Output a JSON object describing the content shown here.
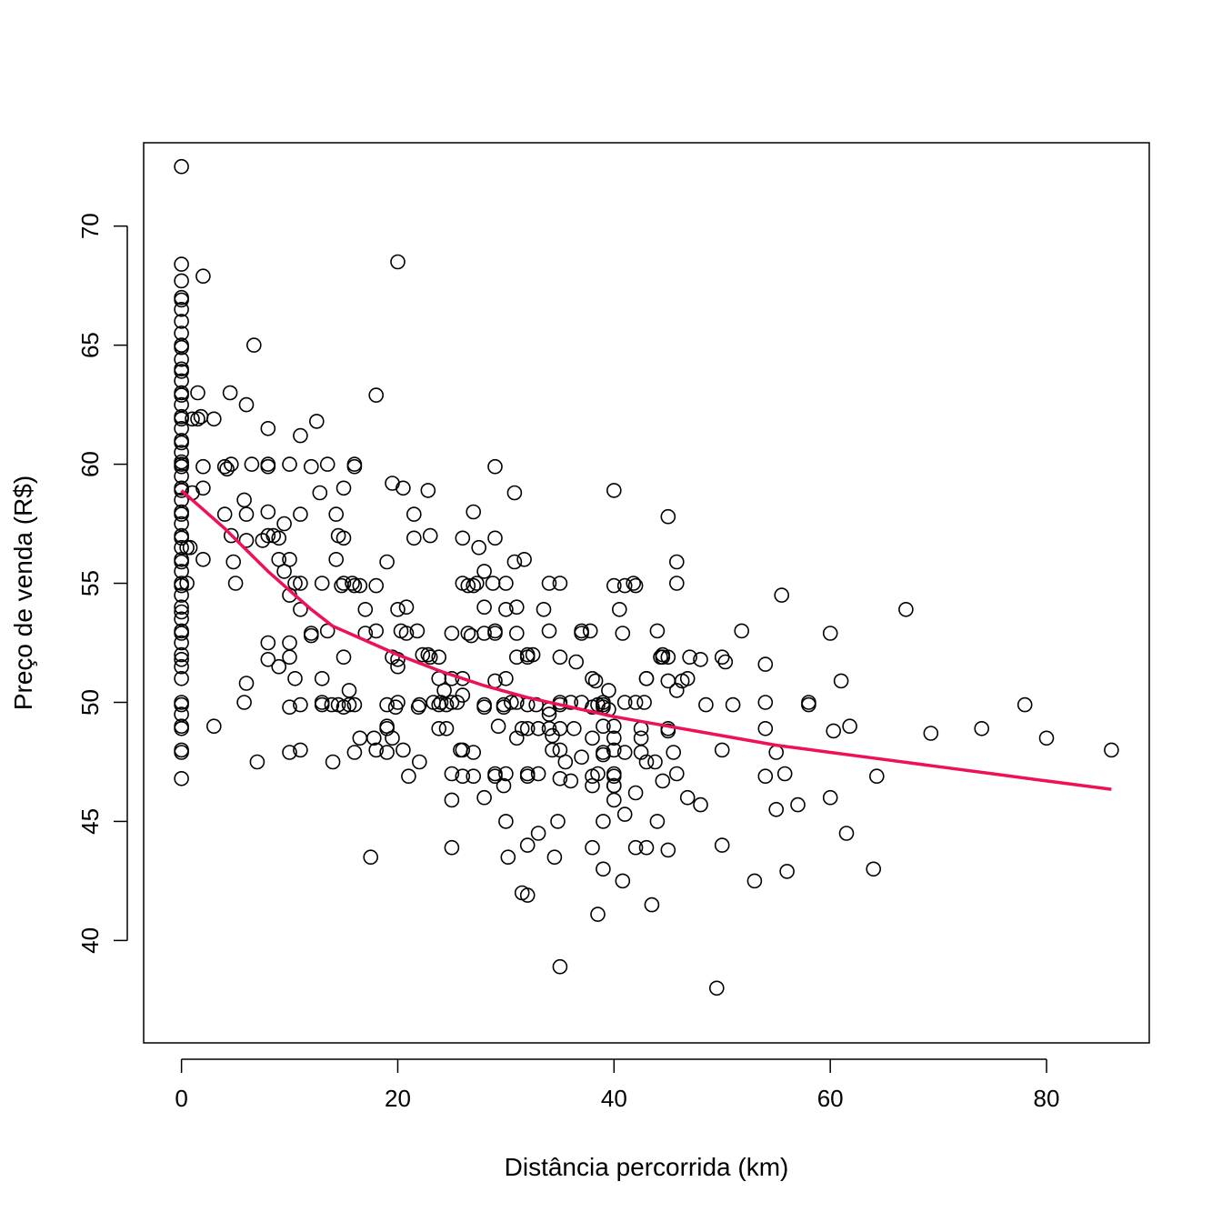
{
  "chart_data": {
    "type": "scatter",
    "title": "",
    "xlabel": "Distância percorrida (km)",
    "ylabel": "Preço de venda (R$)",
    "xlim": [
      -3.5,
      89.5
    ],
    "ylim": [
      35.7,
      73.5
    ],
    "xticks": [
      0,
      20,
      40,
      60,
      80
    ],
    "yticks": [
      40,
      45,
      50,
      55,
      60,
      65,
      70
    ],
    "point_color": "#000000",
    "trend_color": "#ee1155",
    "points": [
      [
        0,
        72.5
      ],
      [
        0,
        68.4
      ],
      [
        0,
        67.7
      ],
      [
        0,
        67
      ],
      [
        0,
        66.9
      ],
      [
        0,
        66.5
      ],
      [
        0,
        66
      ],
      [
        0,
        65.5
      ],
      [
        0,
        65
      ],
      [
        0,
        64.9
      ],
      [
        0,
        64.4
      ],
      [
        0,
        64
      ],
      [
        0,
        63.9
      ],
      [
        0,
        63.5
      ],
      [
        0,
        63
      ],
      [
        0,
        62.9
      ],
      [
        0,
        62.5
      ],
      [
        0,
        62
      ],
      [
        0,
        61.9
      ],
      [
        0,
        61.5
      ],
      [
        0,
        61
      ],
      [
        0,
        60.9
      ],
      [
        0,
        60.5
      ],
      [
        0,
        60.1
      ],
      [
        0,
        60
      ],
      [
        0,
        59.9
      ],
      [
        0,
        59.5
      ],
      [
        0,
        59
      ],
      [
        0,
        58.9
      ],
      [
        0,
        58.5
      ],
      [
        0,
        58
      ],
      [
        0,
        57.9
      ],
      [
        0,
        57.5
      ],
      [
        0,
        57
      ],
      [
        0,
        56.9
      ],
      [
        0,
        56.5
      ],
      [
        0,
        56
      ],
      [
        0,
        55.9
      ],
      [
        0,
        55.5
      ],
      [
        0,
        55
      ],
      [
        0,
        54.9
      ],
      [
        0,
        54.5
      ],
      [
        0,
        54
      ],
      [
        0,
        53.8
      ],
      [
        0,
        53.5
      ],
      [
        0,
        53
      ],
      [
        0,
        52.9
      ],
      [
        0,
        52.5
      ],
      [
        0,
        52
      ],
      [
        0,
        51.8
      ],
      [
        0,
        51.5
      ],
      [
        0,
        51
      ],
      [
        0,
        50
      ],
      [
        0,
        49.9
      ],
      [
        0,
        49.5
      ],
      [
        0,
        49
      ],
      [
        0,
        48.9
      ],
      [
        0,
        48
      ],
      [
        0,
        47.9
      ],
      [
        0,
        46.8
      ],
      [
        0.5,
        55
      ],
      [
        0.5,
        56.5
      ],
      [
        0.8,
        56.5
      ],
      [
        1,
        61.9
      ],
      [
        1,
        58.8
      ],
      [
        1.5,
        63
      ],
      [
        1.5,
        61.9
      ],
      [
        1.8,
        62
      ],
      [
        2,
        67.9
      ],
      [
        2,
        59.9
      ],
      [
        2,
        59
      ],
      [
        2,
        56
      ],
      [
        3,
        61.9
      ],
      [
        3,
        49
      ],
      [
        4,
        59.9
      ],
      [
        4,
        57.9
      ],
      [
        4.2,
        59.8
      ],
      [
        4.5,
        63
      ],
      [
        4.6,
        60
      ],
      [
        4.6,
        57
      ],
      [
        4.8,
        55.9
      ],
      [
        5,
        55
      ],
      [
        5.8,
        58.5
      ],
      [
        5.8,
        50
      ],
      [
        6,
        62.5
      ],
      [
        6,
        57.9
      ],
      [
        6,
        50.8
      ],
      [
        6,
        56.8
      ],
      [
        6.5,
        60
      ],
      [
        6.7,
        65
      ],
      [
        7,
        47.5
      ],
      [
        7.5,
        56.8
      ],
      [
        8,
        61.5
      ],
      [
        8,
        60
      ],
      [
        8,
        59.9
      ],
      [
        8,
        58
      ],
      [
        8,
        57
      ],
      [
        8,
        52.5
      ],
      [
        8,
        51.8
      ],
      [
        8.5,
        57
      ],
      [
        9,
        56
      ],
      [
        9,
        56.9
      ],
      [
        9,
        51.5
      ],
      [
        9.5,
        57.5
      ],
      [
        9.5,
        55.5
      ],
      [
        10,
        60
      ],
      [
        10,
        56
      ],
      [
        10,
        54.5
      ],
      [
        10,
        52.5
      ],
      [
        10,
        51.9
      ],
      [
        10,
        49.8
      ],
      [
        10,
        47.9
      ],
      [
        10.5,
        55
      ],
      [
        10.5,
        51
      ],
      [
        11,
        61.2
      ],
      [
        11,
        57.9
      ],
      [
        11,
        55
      ],
      [
        11,
        53.9
      ],
      [
        11,
        49.9
      ],
      [
        11,
        48
      ],
      [
        12,
        59.9
      ],
      [
        12,
        52.8
      ],
      [
        12,
        52.9
      ],
      [
        12.5,
        61.8
      ],
      [
        12.8,
        58.8
      ],
      [
        13,
        55
      ],
      [
        13,
        51
      ],
      [
        13,
        50
      ],
      [
        13,
        49.9
      ],
      [
        13.5,
        60
      ],
      [
        13.5,
        53
      ],
      [
        13.9,
        49.9
      ],
      [
        14,
        47.5
      ],
      [
        14.3,
        57.9
      ],
      [
        14.3,
        56
      ],
      [
        14.5,
        57
      ],
      [
        14.5,
        49.9
      ],
      [
        14.8,
        54.9
      ],
      [
        15,
        59
      ],
      [
        15,
        56.9
      ],
      [
        15,
        55
      ],
      [
        15,
        51.9
      ],
      [
        15,
        49.8
      ],
      [
        15.5,
        50.5
      ],
      [
        15.5,
        49.9
      ],
      [
        15.8,
        55
      ],
      [
        16,
        60
      ],
      [
        16,
        59.9
      ],
      [
        16,
        54.9
      ],
      [
        16,
        49.9
      ],
      [
        16,
        47.9
      ],
      [
        16.5,
        54.9
      ],
      [
        16.5,
        48.5
      ],
      [
        17,
        53.9
      ],
      [
        17,
        52.9
      ],
      [
        17.5,
        43.5
      ],
      [
        17.8,
        48.5
      ],
      [
        18,
        62.9
      ],
      [
        18,
        54.9
      ],
      [
        18,
        53
      ],
      [
        18,
        48
      ],
      [
        19,
        55.9
      ],
      [
        19,
        49.9
      ],
      [
        19,
        48.9
      ],
      [
        19,
        49
      ],
      [
        19,
        47.9
      ],
      [
        19.5,
        59.2
      ],
      [
        19.5,
        51.9
      ],
      [
        19.5,
        48.5
      ],
      [
        19.8,
        49.8
      ],
      [
        20,
        68.5
      ],
      [
        20,
        53.9
      ],
      [
        20,
        51.8
      ],
      [
        20,
        51.5
      ],
      [
        20,
        50
      ],
      [
        20.5,
        59
      ],
      [
        20.3,
        53
      ],
      [
        20.5,
        48
      ],
      [
        20.8,
        54
      ],
      [
        20.8,
        52.9
      ],
      [
        21,
        46.9
      ],
      [
        21.5,
        57.9
      ],
      [
        21.5,
        56.9
      ],
      [
        21.8,
        53
      ],
      [
        22,
        49.9
      ],
      [
        21.9,
        49.8
      ],
      [
        22,
        47.5
      ],
      [
        22.3,
        52
      ],
      [
        22.8,
        58.9
      ],
      [
        22.8,
        52
      ],
      [
        23,
        57
      ],
      [
        23,
        51.9
      ],
      [
        23.3,
        50
      ],
      [
        23.8,
        51.9
      ],
      [
        23.8,
        51
      ],
      [
        23.8,
        49.9
      ],
      [
        23.8,
        48.9
      ],
      [
        24,
        50
      ],
      [
        24.3,
        50.5
      ],
      [
        24.5,
        49.9
      ],
      [
        24.5,
        48.9
      ],
      [
        25,
        52.9
      ],
      [
        25,
        51
      ],
      [
        25,
        50
      ],
      [
        25,
        47
      ],
      [
        25,
        45.9
      ],
      [
        25,
        43.9
      ],
      [
        25.5,
        50
      ],
      [
        25.8,
        48
      ],
      [
        26,
        56.9
      ],
      [
        26,
        55
      ],
      [
        26,
        51
      ],
      [
        26,
        50.3
      ],
      [
        26,
        48
      ],
      [
        26,
        46.9
      ],
      [
        26.5,
        54.9
      ],
      [
        26.5,
        52.9
      ],
      [
        26.8,
        52.8
      ],
      [
        27,
        58
      ],
      [
        27,
        54.9
      ],
      [
        27,
        47.9
      ],
      [
        27,
        46.9
      ],
      [
        27.3,
        55
      ],
      [
        27.5,
        56.5
      ],
      [
        28,
        55.5
      ],
      [
        28,
        54
      ],
      [
        28,
        52.9
      ],
      [
        28,
        49.9
      ],
      [
        28,
        49.8
      ],
      [
        28,
        46
      ],
      [
        28.8,
        55
      ],
      [
        29,
        59.9
      ],
      [
        29,
        56.9
      ],
      [
        29,
        52.9
      ],
      [
        29,
        53
      ],
      [
        29,
        50.9
      ],
      [
        29,
        47
      ],
      [
        29,
        46.9
      ],
      [
        29.3,
        49
      ],
      [
        29.8,
        49.9
      ],
      [
        29.8,
        49.8
      ],
      [
        30,
        55
      ],
      [
        30,
        53.9
      ],
      [
        30,
        51
      ],
      [
        30,
        47
      ],
      [
        30,
        45
      ],
      [
        29.8,
        46.5
      ],
      [
        30.2,
        43.5
      ],
      [
        30.5,
        50
      ],
      [
        30.8,
        55.9
      ],
      [
        30.8,
        58.8
      ],
      [
        31,
        54
      ],
      [
        31,
        52.9
      ],
      [
        31,
        51.9
      ],
      [
        31,
        48.5
      ],
      [
        31,
        50
      ],
      [
        31.5,
        48.9
      ],
      [
        31.5,
        42
      ],
      [
        31.7,
        56
      ],
      [
        32,
        52
      ],
      [
        32,
        51.9
      ],
      [
        32,
        49.9
      ],
      [
        32,
        48.9
      ],
      [
        32,
        47
      ],
      [
        32,
        46.9
      ],
      [
        32,
        44
      ],
      [
        32,
        41.9
      ],
      [
        32.5,
        52
      ],
      [
        32.8,
        49.9
      ],
      [
        33,
        48.9
      ],
      [
        33,
        47
      ],
      [
        33,
        44.5
      ],
      [
        33.5,
        53.9
      ],
      [
        34,
        55
      ],
      [
        34,
        53
      ],
      [
        34,
        49.7
      ],
      [
        34,
        49.5
      ],
      [
        34,
        48.9
      ],
      [
        34.3,
        48.6
      ],
      [
        34.3,
        48
      ],
      [
        34.5,
        43.5
      ],
      [
        34.8,
        45
      ],
      [
        35,
        51.9
      ],
      [
        35,
        50
      ],
      [
        35,
        49.9
      ],
      [
        35,
        48.9
      ],
      [
        35,
        48
      ],
      [
        35,
        46.8
      ],
      [
        35,
        55
      ],
      [
        35,
        38.9
      ],
      [
        35.5,
        47.5
      ],
      [
        36,
        50
      ],
      [
        36,
        46.7
      ],
      [
        36.3,
        48.9
      ],
      [
        36.5,
        51.7
      ],
      [
        37,
        53
      ],
      [
        37,
        52.9
      ],
      [
        37,
        50
      ],
      [
        37,
        47.7
      ],
      [
        37.8,
        53
      ],
      [
        38,
        51
      ],
      [
        38,
        49.8
      ],
      [
        38,
        48.5
      ],
      [
        38,
        46.9
      ],
      [
        38,
        46.5
      ],
      [
        38,
        43.9
      ],
      [
        38.3,
        50.9
      ],
      [
        38.5,
        49.9
      ],
      [
        38.5,
        47
      ],
      [
        38.5,
        41.1
      ],
      [
        39,
        50
      ],
      [
        39,
        49.9
      ],
      [
        39,
        49.8
      ],
      [
        39,
        49
      ],
      [
        39,
        47.8
      ],
      [
        39,
        47.9
      ],
      [
        39,
        45
      ],
      [
        39,
        43
      ],
      [
        39.5,
        50.5
      ],
      [
        39.5,
        49.7
      ],
      [
        40,
        58.9
      ],
      [
        40,
        54.9
      ],
      [
        40,
        49
      ],
      [
        40,
        48.5
      ],
      [
        40,
        48
      ],
      [
        40,
        47
      ],
      [
        40,
        46.9
      ],
      [
        40,
        46.5
      ],
      [
        40,
        46.5
      ],
      [
        40,
        45.9
      ],
      [
        40.5,
        53.9
      ],
      [
        40.8,
        52.9
      ],
      [
        41,
        54.9
      ],
      [
        41,
        50
      ],
      [
        41,
        47.9
      ],
      [
        41,
        45.3
      ],
      [
        40.8,
        42.5
      ],
      [
        41.8,
        55
      ],
      [
        42,
        54.9
      ],
      [
        42,
        50
      ],
      [
        42,
        46.2
      ],
      [
        42,
        43.9
      ],
      [
        42.5,
        48.9
      ],
      [
        42.5,
        48.5
      ],
      [
        42.5,
        47.9
      ],
      [
        42.8,
        50
      ],
      [
        43,
        51
      ],
      [
        43,
        51
      ],
      [
        43,
        47.5
      ],
      [
        43,
        43.9
      ],
      [
        43.5,
        41.5
      ],
      [
        43.8,
        47.5
      ],
      [
        44,
        53
      ],
      [
        44,
        45
      ],
      [
        44.3,
        51.9
      ],
      [
        44.5,
        52
      ],
      [
        44.5,
        51.9
      ],
      [
        44.5,
        46.7
      ],
      [
        45,
        57.8
      ],
      [
        45,
        51.9
      ],
      [
        45,
        50.9
      ],
      [
        45,
        48.9
      ],
      [
        45,
        48.8
      ],
      [
        45,
        43.8
      ],
      [
        45.5,
        47.9
      ],
      [
        45.8,
        55.9
      ],
      [
        45.8,
        55
      ],
      [
        45.8,
        50.5
      ],
      [
        45.8,
        47
      ],
      [
        46.3,
        50.9
      ],
      [
        46.8,
        51
      ],
      [
        46.8,
        46
      ],
      [
        47,
        51.9
      ],
      [
        48,
        51.8
      ],
      [
        48,
        45.7
      ],
      [
        48.5,
        49.9
      ],
      [
        49.5,
        38
      ],
      [
        50,
        51.9
      ],
      [
        50,
        48
      ],
      [
        50,
        44
      ],
      [
        50.3,
        51.7
      ],
      [
        51,
        49.9
      ],
      [
        51.8,
        53
      ],
      [
        53,
        42.5
      ],
      [
        54,
        51.6
      ],
      [
        54,
        50
      ],
      [
        54,
        48.9
      ],
      [
        54,
        46.9
      ],
      [
        55,
        47.9
      ],
      [
        55,
        45.5
      ],
      [
        55.5,
        54.5
      ],
      [
        55.8,
        47
      ],
      [
        56,
        42.9
      ],
      [
        57,
        45.7
      ],
      [
        58,
        50
      ],
      [
        58,
        49.9
      ],
      [
        60,
        52.9
      ],
      [
        60,
        46
      ],
      [
        60.3,
        48.8
      ],
      [
        61,
        50.9
      ],
      [
        61.5,
        44.5
      ],
      [
        61.8,
        49
      ],
      [
        64,
        43
      ],
      [
        64.3,
        46.9
      ],
      [
        67,
        53.9
      ],
      [
        69.3,
        48.7
      ],
      [
        74,
        48.9
      ],
      [
        78,
        49.9
      ],
      [
        80,
        48.5
      ],
      [
        86,
        48
      ]
    ],
    "trend": {
      "x": [
        0,
        1,
        2,
        4,
        6,
        8,
        10,
        12,
        14,
        16,
        18,
        20,
        24,
        28,
        32,
        36,
        40,
        45,
        50,
        55,
        60,
        65,
        70,
        75,
        80,
        86
      ],
      "y": [
        58.9,
        58.5,
        58.1,
        57.3,
        56.4,
        55.5,
        54.7,
        53.9,
        53.2,
        52.8,
        52.4,
        52.0,
        51.3,
        50.7,
        50.2,
        49.8,
        49.4,
        49.0,
        48.6,
        48.2,
        47.9,
        47.6,
        47.3,
        47.0,
        46.7,
        46.35
      ]
    }
  }
}
